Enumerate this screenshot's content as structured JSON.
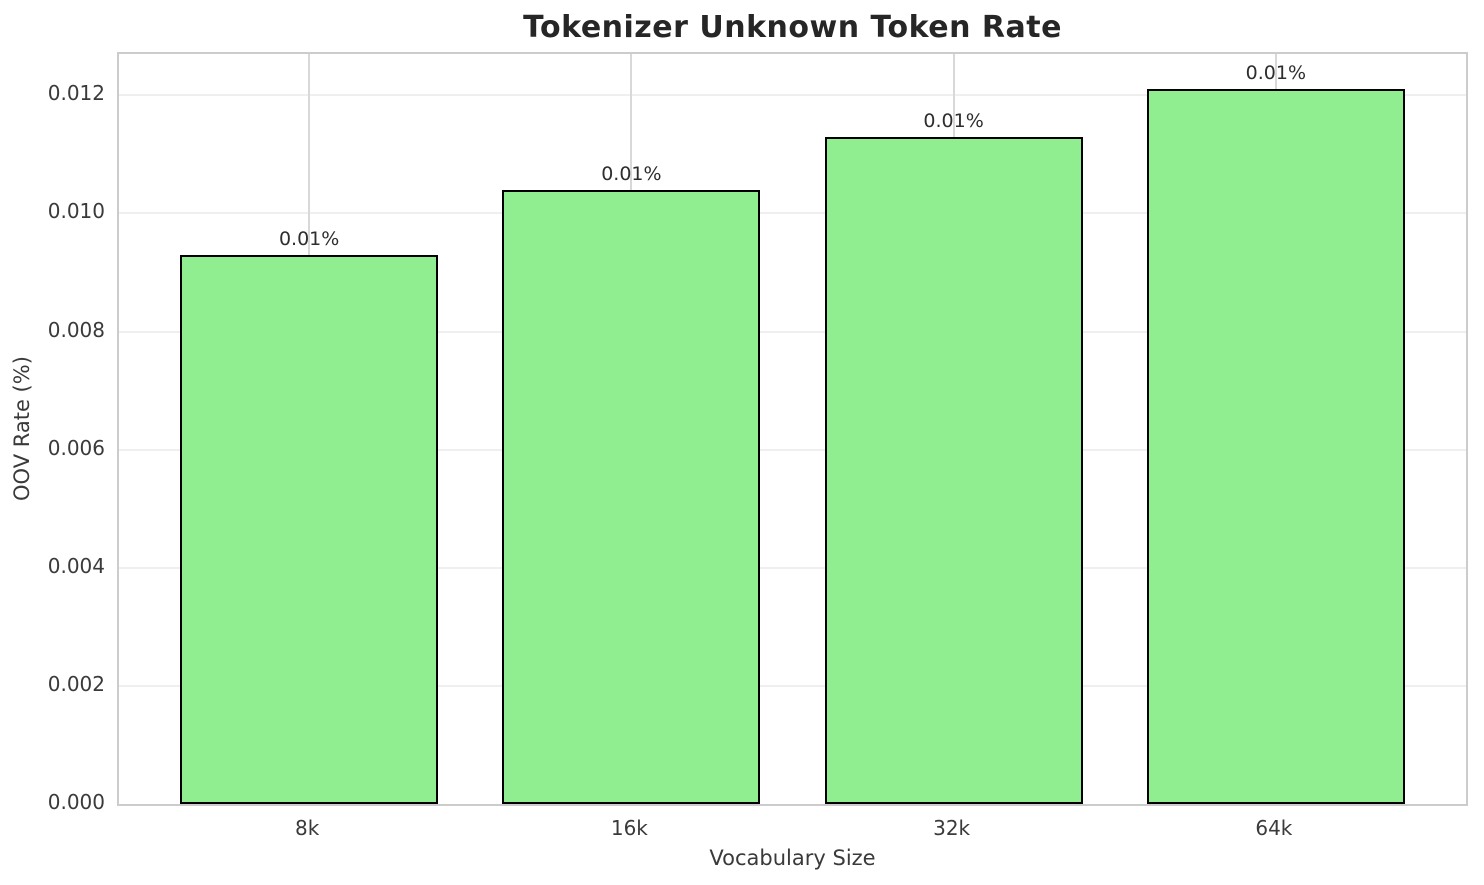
{
  "chart_data": {
    "type": "bar",
    "title": "Tokenizer Unknown Token Rate",
    "xlabel": "Vocabulary Size",
    "ylabel": "OOV Rate (%)",
    "categories": [
      "8k",
      "16k",
      "32k",
      "64k"
    ],
    "values": [
      0.0093,
      0.0104,
      0.0113,
      0.0121
    ],
    "bar_labels": [
      "0.01%",
      "0.01%",
      "0.01%",
      "0.01%"
    ],
    "x_positions": [
      0,
      1,
      2,
      3
    ],
    "bar_width_units": 0.8,
    "xlim": [
      -0.59,
      3.59
    ],
    "ylim": [
      0,
      0.0127
    ],
    "yticks": [
      0,
      0.002,
      0.004,
      0.006,
      0.008,
      0.01,
      0.012
    ],
    "ytick_labels": [
      "0.000",
      "0.002",
      "0.004",
      "0.006",
      "0.008",
      "0.010",
      "0.012"
    ],
    "grid": true,
    "legend_position": "none",
    "colors": {
      "bar_fill": "#90EE90",
      "bar_edge": "#000000",
      "grid_horizontal": "#efefef",
      "grid_vertical": "#d8d8d8",
      "spine": "#cccccc",
      "title_text": "#262626",
      "tick_text": "#3a3a3a",
      "axis_label_text": "#3a3a3a",
      "bar_label_text": "#2e2e2e",
      "background": "#ffffff"
    }
  }
}
